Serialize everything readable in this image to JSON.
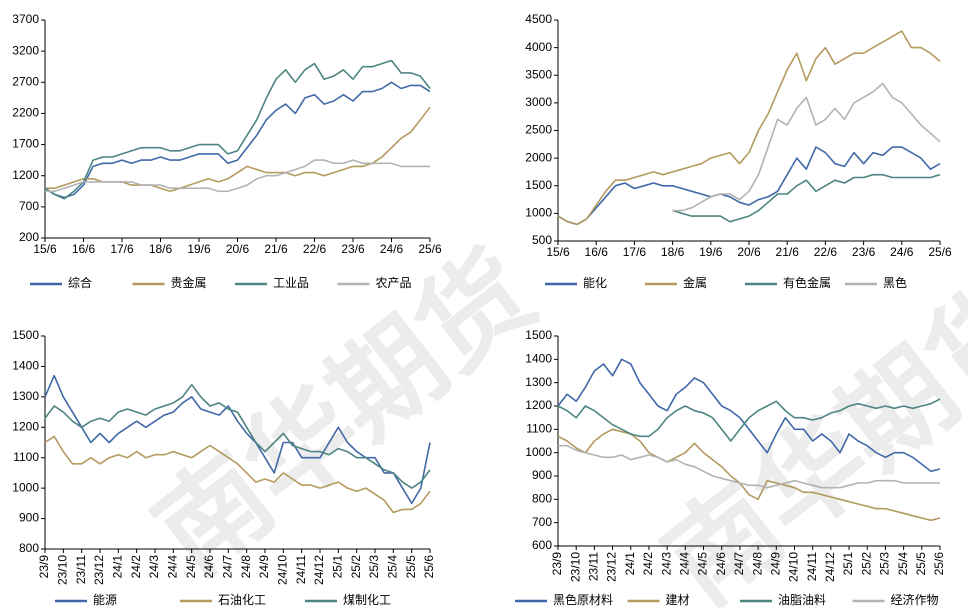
{
  "watermark": "南华期货",
  "chart_data": [
    {
      "type": "line",
      "categories": [
        "15/6",
        null,
        null,
        null,
        "16/6",
        null,
        null,
        null,
        "17/6",
        null,
        null,
        null,
        "18/6",
        null,
        null,
        null,
        "19/6",
        null,
        null,
        null,
        "20/6",
        null,
        null,
        null,
        "21/6",
        null,
        null,
        null,
        "22/6",
        null,
        null,
        null,
        "23/6",
        null,
        null,
        null,
        "24/6",
        null,
        null,
        null,
        "25/6"
      ],
      "ylim": [
        200,
        3700
      ],
      "yticks": [
        200,
        700,
        1200,
        1700,
        2200,
        2700,
        3200,
        3700
      ],
      "series": [
        {
          "name": "综合",
          "color": "#4169a8",
          "values": [
            1000,
            900,
            850,
            900,
            1050,
            1350,
            1400,
            1400,
            1450,
            1400,
            1450,
            1450,
            1500,
            1450,
            1450,
            1500,
            1550,
            1550,
            1550,
            1400,
            1450,
            1650,
            1850,
            2100,
            2250,
            2350,
            2200,
            2450,
            2500,
            2350,
            2400,
            2500,
            2400,
            2550,
            2550,
            2600,
            2700,
            2600,
            2650,
            2650,
            2550
          ]
        },
        {
          "name": "贵金属",
          "color": "#b49a5f",
          "values": [
            1000,
            1000,
            1050,
            1100,
            1150,
            1150,
            1100,
            1100,
            1100,
            1050,
            1050,
            1050,
            1000,
            950,
            1000,
            1050,
            1100,
            1150,
            1100,
            1150,
            1250,
            1350,
            1300,
            1250,
            1250,
            1250,
            1200,
            1250,
            1250,
            1200,
            1250,
            1300,
            1350,
            1350,
            1400,
            1500,
            1650,
            1800,
            1900,
            2100,
            2300
          ]
        },
        {
          "name": "工业品",
          "color": "#4d8582",
          "values": [
            1000,
            900,
            830,
            950,
            1100,
            1450,
            1500,
            1500,
            1550,
            1600,
            1650,
            1650,
            1650,
            1600,
            1600,
            1650,
            1700,
            1700,
            1700,
            1550,
            1600,
            1850,
            2100,
            2450,
            2750,
            2900,
            2700,
            2900,
            3000,
            2750,
            2800,
            2900,
            2750,
            2950,
            2950,
            3000,
            3050,
            2850,
            2850,
            2800,
            2600
          ]
        },
        {
          "name": "农产品",
          "color": "#b3b3b3",
          "values": [
            950,
            950,
            1000,
            1050,
            1100,
            1100,
            1100,
            1100,
            1100,
            1100,
            1050,
            1050,
            1050,
            1000,
            1000,
            1000,
            1000,
            1000,
            950,
            950,
            1000,
            1050,
            1150,
            1200,
            1200,
            1250,
            1300,
            1350,
            1450,
            1450,
            1400,
            1400,
            1450,
            1400,
            1400,
            1400,
            1400,
            1350,
            1350,
            1350,
            1350
          ]
        }
      ]
    },
    {
      "type": "line",
      "categories": [
        "15/6",
        null,
        null,
        null,
        "16/6",
        null,
        null,
        null,
        "17/6",
        null,
        null,
        null,
        "18/6",
        null,
        null,
        null,
        "19/6",
        null,
        null,
        null,
        "20/6",
        null,
        null,
        null,
        "21/6",
        null,
        null,
        null,
        "22/6",
        null,
        null,
        null,
        "23/6",
        null,
        null,
        null,
        "24/6",
        null,
        null,
        null,
        "25/6"
      ],
      "ylim": [
        500,
        4500
      ],
      "yticks": [
        500,
        1000,
        1500,
        2000,
        2500,
        3000,
        3500,
        4000,
        4500
      ],
      "series": [
        {
          "name": "能化",
          "color": "#4169a8",
          "values": [
            950,
            850,
            800,
            900,
            1100,
            1300,
            1500,
            1550,
            1450,
            1500,
            1550,
            1500,
            1500,
            1450,
            1400,
            1350,
            1300,
            1350,
            1300,
            1200,
            1150,
            1250,
            1300,
            1400,
            1700,
            2000,
            1800,
            2200,
            2100,
            1900,
            1850,
            2100,
            1900,
            2100,
            2050,
            2200,
            2200,
            2100,
            2000,
            1800,
            1900
          ]
        },
        {
          "name": "金属",
          "color": "#b49a5f",
          "values": [
            950,
            850,
            800,
            900,
            1150,
            1400,
            1600,
            1600,
            1650,
            1700,
            1750,
            1700,
            1750,
            1800,
            1850,
            1900,
            2000,
            2050,
            2100,
            1900,
            2100,
            2500,
            2800,
            3200,
            3600,
            3900,
            3400,
            3800,
            4000,
            3700,
            3800,
            3900,
            3900,
            4000,
            4100,
            4200,
            4300,
            4000,
            4000,
            3900,
            3750
          ]
        },
        {
          "name": "有色金属",
          "color": "#4d8582",
          "values": [
            null,
            null,
            null,
            null,
            null,
            null,
            null,
            null,
            null,
            null,
            null,
            null,
            1050,
            1000,
            950,
            950,
            950,
            950,
            850,
            900,
            950,
            1050,
            1200,
            1350,
            1350,
            1500,
            1600,
            1400,
            1500,
            1600,
            1550,
            1650,
            1650,
            1700,
            1700,
            1650,
            1650,
            1650,
            1650,
            1650,
            1700
          ]
        },
        {
          "name": "黑色",
          "color": "#b3b3b3",
          "values": [
            null,
            null,
            null,
            null,
            null,
            null,
            null,
            null,
            null,
            null,
            null,
            null,
            1050,
            1050,
            1100,
            1200,
            1300,
            1350,
            1350,
            1250,
            1400,
            1700,
            2200,
            2700,
            2600,
            2900,
            3100,
            2600,
            2700,
            2900,
            2700,
            3000,
            3100,
            3200,
            3350,
            3100,
            3000,
            2800,
            2600,
            2450,
            2300
          ]
        }
      ]
    },
    {
      "type": "line",
      "categories": [
        "23/9",
        null,
        "23/10",
        null,
        "23/11",
        null,
        "23/12",
        null,
        "24/1",
        null,
        "24/2",
        null,
        "24/3",
        null,
        "24/4",
        null,
        "24/5",
        null,
        "24/6",
        null,
        "24/7",
        null,
        "24/8",
        null,
        "24/9",
        null,
        "24/10",
        null,
        "24/11",
        null,
        "24/12",
        null,
        "25/1",
        null,
        "25/2",
        null,
        "25/3",
        null,
        "25/4",
        null,
        "25/5",
        null,
        "25/6"
      ],
      "ylim": [
        800,
        1500
      ],
      "yticks": [
        800,
        900,
        1000,
        1100,
        1200,
        1300,
        1400,
        1500
      ],
      "series": [
        {
          "name": "能源",
          "color": "#4169a8",
          "values": [
            1300,
            1370,
            1300,
            1250,
            1200,
            1150,
            1180,
            1150,
            1180,
            1200,
            1220,
            1200,
            1220,
            1240,
            1250,
            1280,
            1300,
            1260,
            1250,
            1240,
            1270,
            1220,
            1180,
            1150,
            1100,
            1050,
            1150,
            1150,
            1100,
            1100,
            1100,
            1150,
            1200,
            1150,
            1120,
            1100,
            1100,
            1050,
            1050,
            1000,
            950,
            1000,
            1150
          ]
        },
        {
          "name": "石油化工",
          "color": "#b49a5f",
          "values": [
            1150,
            1170,
            1120,
            1080,
            1080,
            1100,
            1080,
            1100,
            1110,
            1100,
            1120,
            1100,
            1110,
            1110,
            1120,
            1110,
            1100,
            1120,
            1140,
            1120,
            1100,
            1080,
            1050,
            1020,
            1030,
            1020,
            1050,
            1030,
            1010,
            1010,
            1000,
            1010,
            1020,
            1000,
            990,
            1000,
            980,
            960,
            920,
            930,
            930,
            950,
            990
          ]
        },
        {
          "name": "煤制化工",
          "color": "#4d8582",
          "values": [
            1230,
            1270,
            1250,
            1220,
            1200,
            1220,
            1230,
            1220,
            1250,
            1260,
            1250,
            1240,
            1260,
            1270,
            1280,
            1300,
            1340,
            1300,
            1270,
            1280,
            1260,
            1250,
            1200,
            1150,
            1120,
            1150,
            1180,
            1140,
            1130,
            1120,
            1120,
            1110,
            1130,
            1120,
            1100,
            1100,
            1080,
            1060,
            1050,
            1020,
            1000,
            1020,
            1060
          ]
        }
      ]
    },
    {
      "type": "line",
      "categories": [
        "23/9",
        null,
        "23/10",
        null,
        "23/11",
        null,
        "23/12",
        null,
        "24/1",
        null,
        "24/2",
        null,
        "24/3",
        null,
        "24/4",
        null,
        "24/5",
        null,
        "24/6",
        null,
        "24/7",
        null,
        "24/8",
        null,
        "24/9",
        null,
        "24/10",
        null,
        "24/11",
        null,
        "24/12",
        null,
        "25/1",
        null,
        "25/2",
        null,
        "25/3",
        null,
        "25/4",
        null,
        "25/5",
        null,
        "25/6"
      ],
      "ylim": [
        600,
        1500
      ],
      "yticks": [
        600,
        700,
        800,
        900,
        1000,
        1100,
        1200,
        1300,
        1400,
        1500
      ],
      "series": [
        {
          "name": "黑色原材料",
          "color": "#4169a8",
          "values": [
            1200,
            1250,
            1220,
            1280,
            1350,
            1380,
            1330,
            1400,
            1380,
            1300,
            1250,
            1200,
            1180,
            1250,
            1280,
            1320,
            1300,
            1250,
            1200,
            1180,
            1150,
            1100,
            1050,
            1000,
            1080,
            1150,
            1100,
            1100,
            1050,
            1080,
            1050,
            1000,
            1080,
            1050,
            1030,
            1000,
            980,
            1000,
            1000,
            980,
            950,
            920,
            930
          ]
        },
        {
          "name": "建材",
          "color": "#b49a5f",
          "values": [
            1070,
            1050,
            1020,
            1000,
            1050,
            1080,
            1100,
            1090,
            1080,
            1050,
            1000,
            980,
            960,
            980,
            1000,
            1040,
            1000,
            970,
            940,
            900,
            870,
            820,
            800,
            880,
            870,
            860,
            850,
            830,
            830,
            820,
            810,
            800,
            790,
            780,
            770,
            760,
            760,
            750,
            740,
            730,
            720,
            710,
            720
          ]
        },
        {
          "name": "油脂油料",
          "color": "#4d8582",
          "values": [
            1200,
            1180,
            1150,
            1200,
            1180,
            1150,
            1120,
            1100,
            1080,
            1070,
            1070,
            1100,
            1150,
            1180,
            1200,
            1180,
            1170,
            1150,
            1100,
            1050,
            1100,
            1150,
            1180,
            1200,
            1220,
            1180,
            1150,
            1150,
            1140,
            1150,
            1170,
            1180,
            1200,
            1210,
            1200,
            1190,
            1200,
            1190,
            1200,
            1190,
            1200,
            1210,
            1230
          ]
        },
        {
          "name": "经济作物",
          "color": "#b3b3b3",
          "values": [
            1030,
            1030,
            1010,
            1000,
            990,
            980,
            980,
            990,
            970,
            980,
            990,
            980,
            960,
            970,
            950,
            940,
            920,
            900,
            890,
            880,
            870,
            860,
            860,
            850,
            860,
            870,
            880,
            870,
            860,
            850,
            850,
            850,
            860,
            870,
            870,
            880,
            880,
            880,
            870,
            870,
            870,
            870,
            870
          ]
        }
      ]
    }
  ]
}
